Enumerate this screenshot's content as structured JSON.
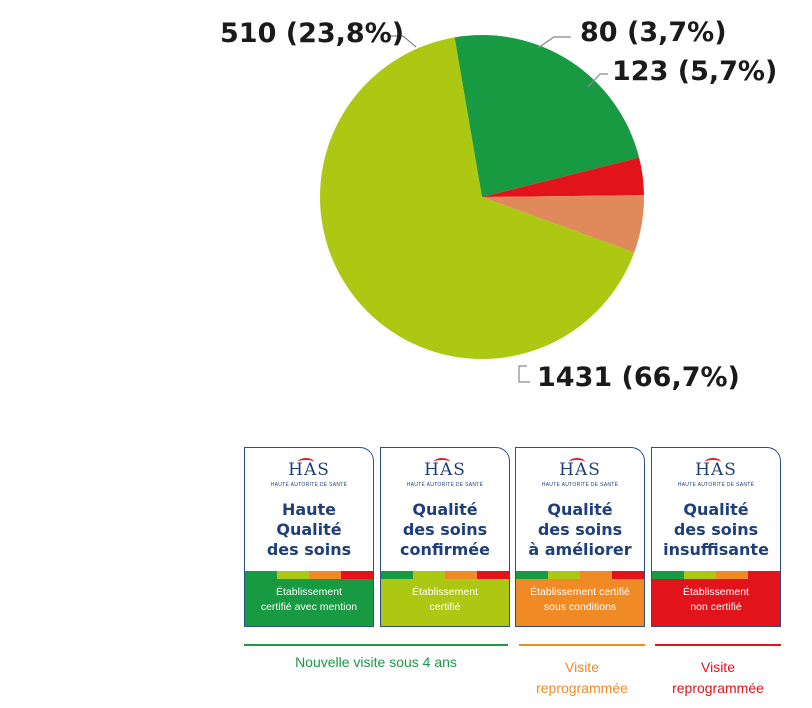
{
  "chart_data": {
    "type": "pie",
    "title": "",
    "slices": [
      {
        "label": "Qualité des soins confirmée",
        "value": 1431,
        "percent_label": "1431 (66,7%)",
        "color": "#acc812"
      },
      {
        "label": "Haute Qualité des soins",
        "value": 510,
        "percent_label": "510 (23,8%)",
        "color": "#189a43"
      },
      {
        "label": "Qualité des soins insuffisante",
        "value": 80,
        "percent_label": "80 (3,7%)",
        "color": "#e3131b"
      },
      {
        "label": "Qualité des soins à améliorer",
        "value": 123,
        "percent_label": "123 (5,7%)",
        "color": "#e08a5c"
      }
    ]
  },
  "legend": {
    "cards": [
      {
        "logo": "HAS",
        "subtitle": "HAUTE AUTORITÉ DE SANTÉ",
        "title": [
          "Haute",
          "Qualité",
          "des soins"
        ],
        "footer": [
          "Établissement",
          "certifié avec mention"
        ],
        "color": "#189a43"
      },
      {
        "logo": "HAS",
        "subtitle": "HAUTE AUTORITÉ DE SANTÉ",
        "title": [
          "Qualité",
          "des soins",
          "confirmée"
        ],
        "footer": [
          "Établissement",
          "certifié"
        ],
        "color": "#acc812"
      },
      {
        "logo": "HAS",
        "subtitle": "HAUTE AUTORITÉ DE SANTÉ",
        "title": [
          "Qualité",
          "des soins",
          "à améliorer"
        ],
        "footer": [
          "Établissement certifié",
          "sous conditions"
        ],
        "color": "#f08a24"
      },
      {
        "logo": "HAS",
        "subtitle": "HAUTE AUTORITÉ DE SANTÉ",
        "title": [
          "Qualité",
          "des soins",
          "insuffisante"
        ],
        "footer": [
          "Établissement",
          "non certifié"
        ],
        "color": "#e3131b"
      }
    ],
    "groups": [
      {
        "text": "Nouvelle visite sous 4 ans",
        "color": "#189a43"
      },
      {
        "text_line1": "Visite",
        "text_line2": "reprogrammée",
        "color": "#f08a24"
      },
      {
        "text_line1": "Visite",
        "text_line2": "reprogrammée",
        "color": "#e3131b"
      }
    ],
    "band_colors": [
      "#189a43",
      "#acc812",
      "#f08a24",
      "#e3131b"
    ]
  }
}
